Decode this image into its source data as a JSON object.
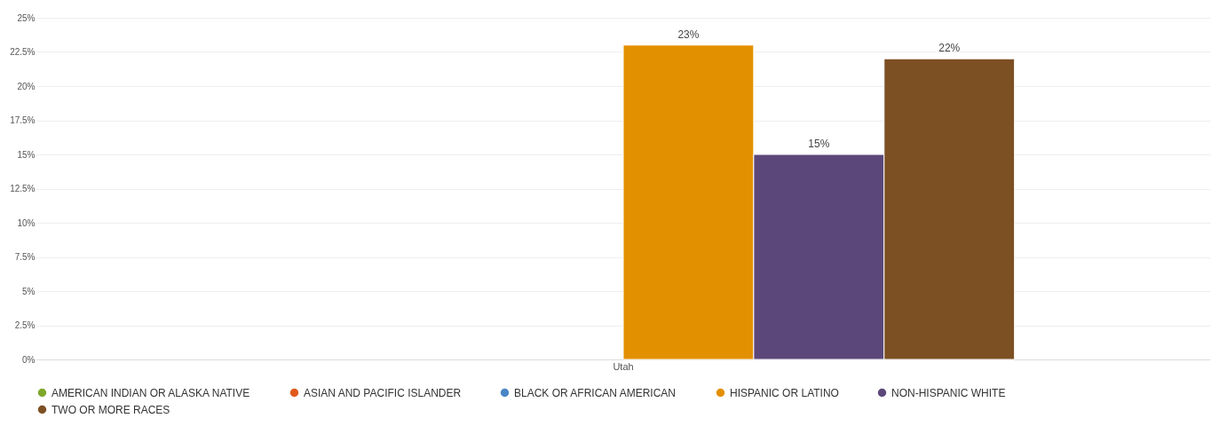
{
  "chart_data": {
    "type": "bar",
    "categories": [
      "Utah"
    ],
    "series": [
      {
        "name": "AMERICAN INDIAN OR ALASKA NATIVE",
        "color": "#7fa82b",
        "values": [
          null
        ]
      },
      {
        "name": "ASIAN AND PACIFIC ISLANDER",
        "color": "#e05a1d",
        "values": [
          null
        ]
      },
      {
        "name": "BLACK OR AFRICAN AMERICAN",
        "color": "#4a86c5",
        "values": [
          null
        ]
      },
      {
        "name": "HISPANIC OR LATINO",
        "color": "#e39000",
        "values": [
          23
        ],
        "value_labels": [
          "23%"
        ]
      },
      {
        "name": "NON-HISPANIC WHITE",
        "color": "#5c477a",
        "values": [
          15
        ],
        "value_labels": [
          "15%"
        ]
      },
      {
        "name": "TWO OR MORE RACES",
        "color": "#7d5023",
        "values": [
          22
        ],
        "value_labels": [
          "22%"
        ]
      }
    ],
    "ylim": [
      0,
      25
    ],
    "yticks": [
      {
        "value": 0,
        "label": "0%"
      },
      {
        "value": 2.5,
        "label": "2.5%"
      },
      {
        "value": 5,
        "label": "5%"
      },
      {
        "value": 7.5,
        "label": "7.5%"
      },
      {
        "value": 10,
        "label": "10%"
      },
      {
        "value": 12.5,
        "label": "12.5%"
      },
      {
        "value": 15,
        "label": "15%"
      },
      {
        "value": 17.5,
        "label": "17.5%"
      },
      {
        "value": 20,
        "label": "20%"
      },
      {
        "value": 22.5,
        "label": "22.5%"
      },
      {
        "value": 25,
        "label": "25%"
      }
    ],
    "grid": "y",
    "legend": "bottom"
  }
}
